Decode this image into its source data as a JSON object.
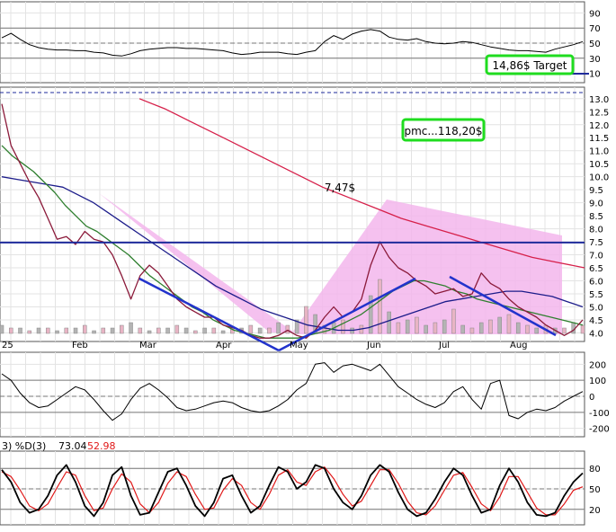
{
  "chart_data": {
    "type": "line",
    "x_months": [
      "25",
      "Feb",
      "Mar",
      "Apr",
      "May",
      "Jun",
      "Jul",
      "Aug"
    ],
    "panels": {
      "rsi": {
        "ticks": [
          90,
          70,
          50,
          30,
          10
        ],
        "ylim": [
          0,
          100
        ],
        "values": [
          57,
          63,
          55,
          48,
          44,
          42,
          41,
          41,
          40,
          40,
          38,
          37,
          34,
          33,
          36,
          40,
          42,
          43,
          44,
          44,
          43,
          43,
          42,
          41,
          40,
          37,
          35,
          36,
          38,
          38,
          38,
          36,
          35,
          38,
          40,
          52,
          60,
          55,
          62,
          66,
          68,
          66,
          58,
          55,
          54,
          56,
          52,
          50,
          49,
          50,
          52,
          51,
          48,
          45,
          43,
          41,
          40,
          40,
          39,
          38,
          42,
          45,
          48,
          52
        ]
      },
      "price": {
        "ticks": [
          13.0,
          12.5,
          12.0,
          11.5,
          11.0,
          10.5,
          10.0,
          9.5,
          9.0,
          8.5,
          8.0,
          7.5,
          7.0,
          6.5,
          6.0,
          5.5,
          5.0,
          4.5,
          4.0
        ],
        "ylim": [
          3.6,
          13.2
        ],
        "close": [
          12.8,
          11.2,
          10.5,
          9.8,
          9.2,
          8.4,
          7.6,
          7.7,
          7.4,
          7.9,
          7.6,
          7.5,
          7.0,
          6.2,
          5.3,
          6.2,
          6.6,
          6.3,
          5.8,
          5.3,
          5.0,
          4.8,
          4.6,
          4.6,
          4.3,
          4.2,
          4.1,
          3.9,
          3.8,
          3.8,
          3.9,
          4.1,
          3.9,
          3.8,
          4.1,
          4.6,
          5.0,
          4.6,
          4.8,
          5.3,
          6.6,
          7.5,
          6.9,
          6.5,
          6.3,
          6.0,
          5.8,
          5.5,
          5.6,
          5.7,
          5.4,
          5.5,
          6.3,
          5.9,
          5.7,
          5.3,
          5.0,
          4.8,
          4.6,
          4.3,
          4.1,
          3.9,
          4.1,
          4.5
        ],
        "ma_green": [
          11.2,
          10.8,
          10.5,
          10.2,
          9.8,
          9.4,
          8.9,
          8.5,
          8.1,
          7.9,
          7.6,
          7.3,
          7.0,
          6.6,
          6.2,
          5.9,
          5.6,
          5.3,
          5.0,
          4.8,
          4.5,
          4.3,
          4.1,
          4.0,
          3.9,
          3.8,
          3.8,
          3.8,
          3.8,
          3.9,
          4.0,
          4.1,
          4.3,
          4.5,
          4.7,
          5.0,
          5.3,
          5.6,
          5.8,
          6.0,
          6.0,
          5.9,
          5.8,
          5.6,
          5.5,
          5.3,
          5.2,
          5.1,
          5.0,
          4.9,
          4.8,
          4.7,
          4.6,
          4.5,
          4.4,
          4.3
        ],
        "ma_blue": [
          10.0,
          9.9,
          9.8,
          9.7,
          9.6,
          9.3,
          9.0,
          8.6,
          8.2,
          7.8,
          7.4,
          7.0,
          6.6,
          6.2,
          5.8,
          5.5,
          5.2,
          4.9,
          4.7,
          4.5,
          4.3,
          4.2,
          4.1,
          4.1,
          4.2,
          4.4,
          4.6,
          4.8,
          5.0,
          5.2,
          5.3,
          5.4,
          5.5,
          5.6,
          5.6,
          5.5,
          5.4,
          5.2,
          5.0
        ],
        "ma_red": [
          13.0,
          12.6,
          12.1,
          11.6,
          11.1,
          10.6,
          10.1,
          9.6,
          9.2,
          8.8,
          8.4,
          8.1,
          7.8,
          7.5,
          7.2,
          6.9,
          6.7,
          6.5
        ]
      },
      "cci": {
        "ticks": [
          200,
          100,
          0,
          -100,
          -200
        ],
        "ylim": [
          -240,
          240
        ],
        "values": [
          140,
          100,
          20,
          -40,
          -70,
          -60,
          -20,
          20,
          60,
          40,
          -20,
          -90,
          -150,
          -110,
          -20,
          50,
          80,
          40,
          -10,
          -70,
          -90,
          -80,
          -60,
          -40,
          -30,
          -40,
          -70,
          -90,
          -100,
          -90,
          -60,
          -20,
          40,
          80,
          200,
          210,
          150,
          190,
          200,
          180,
          160,
          200,
          130,
          60,
          20,
          -20,
          -50,
          -70,
          -40,
          30,
          60,
          -20,
          -80,
          80,
          100,
          -120,
          -140,
          -100,
          -80,
          -90,
          -70,
          -30,
          0,
          30
        ]
      },
      "stoch": {
        "label": "3) %D(3)",
        "k_value": "73.04",
        "d_value": "52.98",
        "ticks": [
          80,
          50,
          20
        ],
        "ylim": [
          0,
          100
        ],
        "k": [
          78,
          60,
          30,
          15,
          20,
          40,
          70,
          85,
          60,
          25,
          10,
          30,
          70,
          82,
          40,
          12,
          15,
          45,
          75,
          80,
          55,
          25,
          10,
          30,
          65,
          70,
          40,
          15,
          25,
          55,
          82,
          75,
          50,
          60,
          85,
          80,
          50,
          30,
          20,
          40,
          70,
          85,
          75,
          45,
          20,
          10,
          15,
          35,
          60,
          80,
          70,
          40,
          15,
          20,
          55,
          80,
          60,
          30,
          12,
          10,
          15,
          40,
          60,
          73
        ],
        "d": [
          75,
          68,
          48,
          25,
          18,
          28,
          52,
          75,
          70,
          40,
          18,
          22,
          50,
          72,
          60,
          28,
          15,
          30,
          58,
          75,
          68,
          42,
          20,
          22,
          48,
          65,
          55,
          30,
          20,
          42,
          70,
          78,
          60,
          55,
          75,
          82,
          65,
          42,
          25,
          32,
          55,
          78,
          78,
          58,
          32,
          15,
          12,
          25,
          48,
          70,
          74,
          52,
          28,
          18,
          38,
          68,
          68,
          45,
          22,
          12,
          12,
          28,
          48,
          53
        ]
      }
    },
    "annotations": {
      "target_label": "14,86$ Target",
      "pmc_label": "pmc...118,20$",
      "level_label": "7,47$",
      "rsi_blue_tick": "40"
    },
    "grid": true,
    "colors": {
      "price_line": "#8b1a3a",
      "ma_green": "#2f7f2f",
      "ma_blue": "#1c1c8a",
      "ma_red": "#d6204a",
      "horizontal_level": "#1f2b9b",
      "trend_lines": "#2233cc",
      "pink_fill": "#f3b6ec",
      "highlight_box": "#1fdc1f",
      "stoch_d": "#e01818"
    }
  }
}
